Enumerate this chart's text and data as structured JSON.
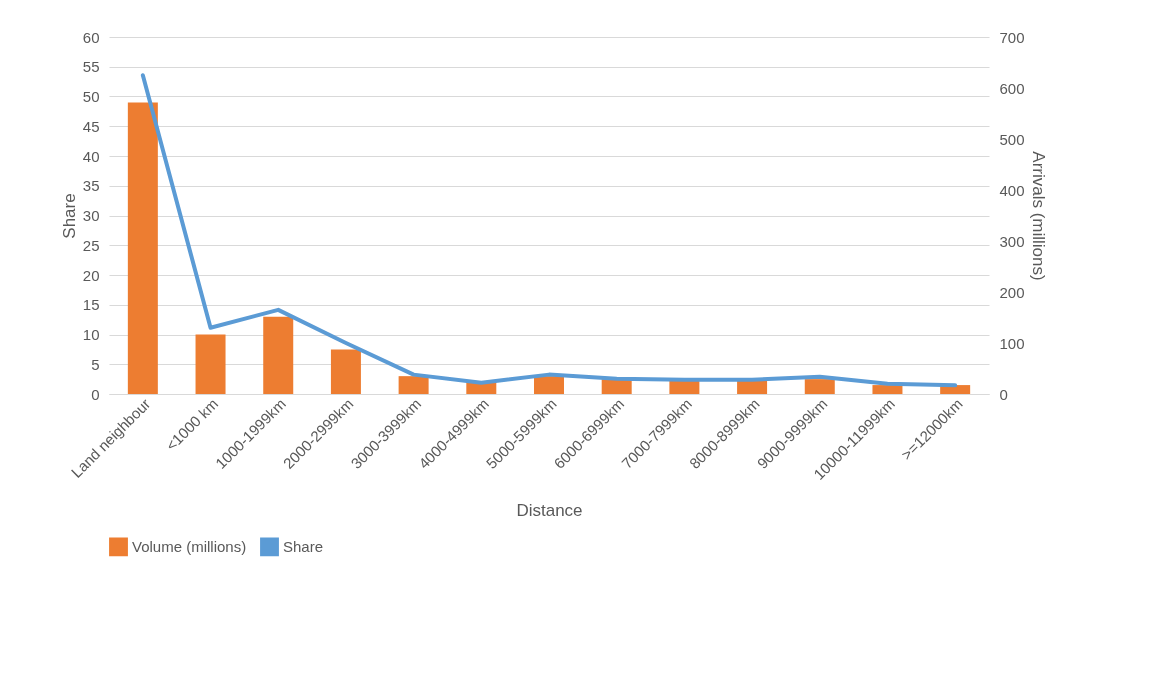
{
  "chart_data": {
    "type": "bar",
    "xlabel": "Distance",
    "ylabel": "Share",
    "y2label": "Arrivals (millions)",
    "categories": [
      "Land neighbour",
      "<1000 km",
      "1000-1999km",
      "2000-2999km",
      "3000-3999km",
      "4000-4999km",
      "5000-5999km",
      "6000-6999km",
      "7000-7999km",
      "8000-8999km",
      "9000-9999km",
      "10000-11999km",
      ">=12000km"
    ],
    "series": [
      {
        "name": "Volume (millions)",
        "color": "#ed7d31",
        "values": [
          49,
          10,
          13,
          7.5,
          3,
          2,
          3,
          2.5,
          2.2,
          2.2,
          2.5,
          1.5,
          1.5
        ]
      },
      {
        "name": "Share",
        "type": "line",
        "axis": "y2",
        "color": "#5b9bd5",
        "values": [
          625,
          130,
          165,
          100,
          38,
          22,
          38,
          30,
          28,
          28,
          34,
          20,
          17
        ]
      }
    ],
    "ylim": [
      0,
      60
    ],
    "yticks": [
      0,
      5,
      10,
      15,
      20,
      25,
      30,
      35,
      40,
      45,
      50,
      55,
      60
    ],
    "y2lim": [
      0,
      700
    ],
    "y2ticks": [
      0,
      100,
      200,
      300,
      400,
      500,
      600,
      700
    ],
    "grid": "y",
    "legend": "bottom"
  }
}
